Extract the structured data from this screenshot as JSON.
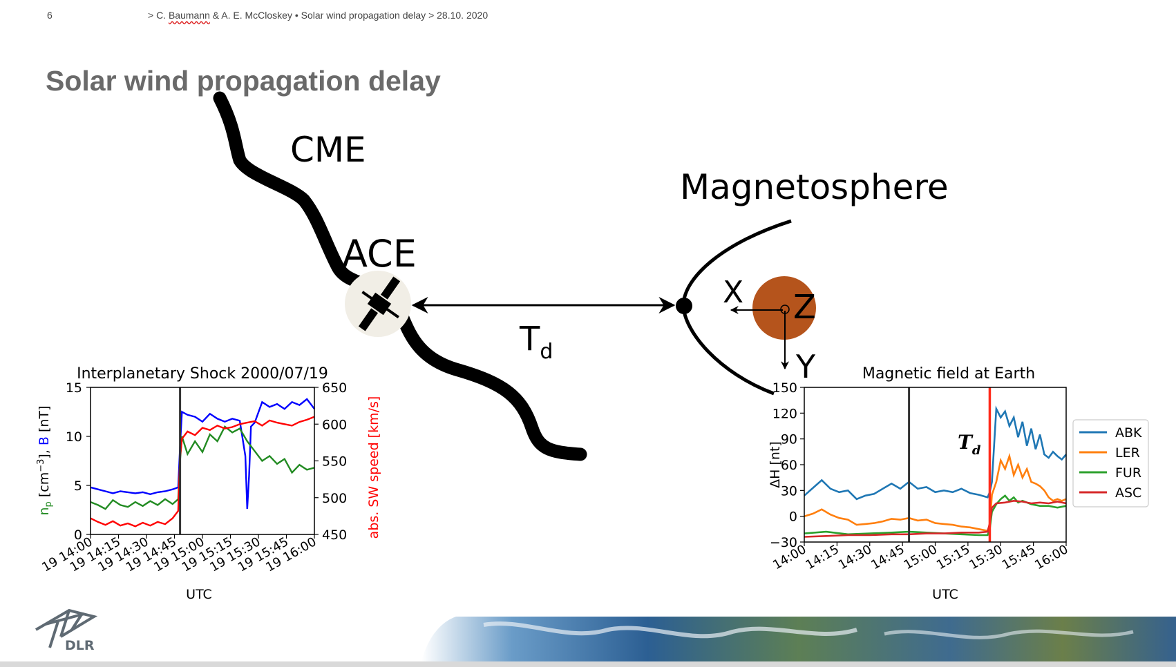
{
  "header": {
    "page_number": "6",
    "prefix": "> C. ",
    "author_underlined": "Baumann",
    "rest": " & A. E. McCloskey  •  Solar wind propagation delay > 28.10. 2020"
  },
  "slide_title": "Solar wind propagation delay",
  "diagram": {
    "cme_label": "CME",
    "ace_label": "ACE",
    "magnetosphere_label": "Magnetosphere",
    "td_main": "T",
    "td_sub": "d",
    "axis_x": "X",
    "axis_y": "Y",
    "axis_z": "Z",
    "earth_color": "#b5541c"
  },
  "logo": {
    "text": "DLR"
  },
  "chart_data": [
    {
      "type": "line",
      "title": "Interplanetary Shock 2000/07/19",
      "xlabel": "UTC",
      "ylabel_left_parts": [
        "n",
        "p",
        " [cm",
        "−3",
        "],  ",
        "B",
        " [nT]"
      ],
      "ylabel_right": "abs. SW speed [km/s]",
      "ylim_left": [
        0,
        15
      ],
      "ylim_right": [
        450,
        650
      ],
      "yticks_left": [
        "0",
        "5",
        "10",
        "15"
      ],
      "yticks_right": [
        "450",
        "500",
        "550",
        "600",
        "650"
      ],
      "xticks": [
        "19 14:00",
        "19 14:15",
        "19 14:30",
        "19 14:45",
        "19 15:00",
        "19 15:15",
        "19 15:30",
        "19 15:45",
        "19 16:00"
      ],
      "xlim_minutes": [
        0,
        120
      ],
      "vline_minutes": 48,
      "series": [
        {
          "name": "B",
          "axis": "left",
          "color": "#0000ff",
          "x": [
            0,
            4,
            8,
            12,
            16,
            20,
            24,
            28,
            32,
            36,
            40,
            44,
            47,
            48,
            49,
            52,
            56,
            60,
            64,
            68,
            72,
            76,
            80,
            83,
            84,
            85,
            86,
            88,
            92,
            96,
            100,
            104,
            108,
            112,
            116,
            120
          ],
          "y": [
            4.8,
            4.6,
            4.4,
            4.2,
            4.4,
            4.3,
            4.2,
            4.3,
            4.1,
            4.3,
            4.4,
            4.6,
            4.8,
            9,
            12.5,
            12.2,
            12,
            11.5,
            12.3,
            11.8,
            11.5,
            11.8,
            11.6,
            8,
            2.6,
            6,
            11,
            11.4,
            13.5,
            13,
            13.3,
            12.8,
            13.5,
            13.2,
            13.8,
            12.8
          ]
        },
        {
          "name": "n_p",
          "axis": "left",
          "color": "#228b22",
          "x": [
            0,
            4,
            8,
            12,
            16,
            20,
            24,
            28,
            32,
            36,
            40,
            44,
            47,
            48,
            49,
            52,
            56,
            60,
            64,
            68,
            72,
            76,
            80,
            84,
            88,
            92,
            96,
            100,
            104,
            108,
            112,
            116,
            120
          ],
          "y": [
            3.3,
            3,
            2.6,
            3.5,
            3,
            2.8,
            3.3,
            2.9,
            3.4,
            3,
            3.6,
            3.1,
            3.6,
            7.5,
            10,
            8.2,
            9.5,
            8.4,
            10.2,
            9.5,
            11,
            10.4,
            10.8,
            9.5,
            8.5,
            7.5,
            8,
            7.2,
            7.7,
            6.3,
            7.1,
            6.6,
            6.8
          ]
        },
        {
          "name": "abs. SW speed",
          "axis": "right",
          "color": "#ff0000",
          "x": [
            0,
            4,
            8,
            12,
            16,
            20,
            24,
            28,
            32,
            36,
            40,
            44,
            47,
            48,
            49,
            52,
            56,
            60,
            64,
            68,
            72,
            76,
            80,
            84,
            88,
            92,
            96,
            100,
            104,
            108,
            112,
            116,
            120
          ],
          "y": [
            472,
            467,
            463,
            468,
            462,
            465,
            461,
            466,
            462,
            467,
            464,
            472,
            482,
            555,
            580,
            590,
            585,
            595,
            592,
            598,
            594,
            596,
            600,
            602,
            604,
            598,
            605,
            602,
            600,
            598,
            603,
            606,
            610
          ]
        }
      ]
    },
    {
      "type": "line",
      "title": "Magnetic field at Earth",
      "xlabel": "UTC",
      "ylabel": "ΔH [nt]",
      "annotation_main": "T",
      "annotation_sub": "d",
      "ylim": [
        -30,
        150
      ],
      "yticks": [
        "−30",
        "0",
        "30",
        "60",
        "90",
        "120",
        "150"
      ],
      "xticks": [
        "14:00",
        "14:15",
        "14:30",
        "14:45",
        "15:00",
        "15:15",
        "15:30",
        "15:45",
        "16:00"
      ],
      "xlim_minutes": [
        0,
        120
      ],
      "vline_black_minutes": 48,
      "vline_red_minutes": 85,
      "legend": [
        "ABK",
        "LER",
        "FUR",
        "ASC"
      ],
      "legend_position": "right",
      "series": [
        {
          "name": "ABK",
          "color": "#1f77b4",
          "x": [
            0,
            4,
            8,
            12,
            16,
            20,
            24,
            28,
            32,
            36,
            40,
            44,
            48,
            52,
            56,
            60,
            64,
            68,
            72,
            76,
            80,
            84,
            85,
            86,
            88,
            90,
            92,
            94,
            96,
            98,
            100,
            102,
            104,
            106,
            108,
            110,
            112,
            114,
            116,
            118,
            120
          ],
          "y": [
            24,
            33,
            42,
            32,
            28,
            30,
            20,
            24,
            26,
            32,
            38,
            32,
            40,
            32,
            34,
            28,
            30,
            28,
            32,
            27,
            25,
            22,
            28,
            40,
            125,
            115,
            122,
            105,
            115,
            92,
            110,
            82,
            102,
            78,
            95,
            72,
            68,
            75,
            70,
            66,
            72
          ]
        },
        {
          "name": "LER",
          "color": "#ff7f0e",
          "x": [
            0,
            4,
            8,
            12,
            16,
            20,
            24,
            28,
            32,
            36,
            40,
            44,
            48,
            52,
            56,
            60,
            64,
            68,
            72,
            76,
            80,
            84,
            85,
            86,
            88,
            90,
            92,
            94,
            96,
            98,
            100,
            102,
            104,
            106,
            108,
            110,
            112,
            114,
            116,
            118,
            120
          ],
          "y": [
            0,
            3,
            8,
            2,
            -2,
            -4,
            -10,
            -9,
            -8,
            -6,
            -3,
            -4,
            -2,
            -5,
            -4,
            -8,
            -9,
            -10,
            -12,
            -13,
            -15,
            -17,
            -10,
            25,
            40,
            65,
            55,
            70,
            48,
            60,
            45,
            55,
            40,
            38,
            35,
            30,
            22,
            18,
            20,
            18,
            20
          ]
        },
        {
          "name": "FUR",
          "color": "#2ca02c",
          "x": [
            0,
            10,
            20,
            30,
            40,
            48,
            56,
            64,
            72,
            80,
            84,
            85,
            86,
            88,
            90,
            92,
            94,
            96,
            98,
            100,
            104,
            108,
            112,
            116,
            120
          ],
          "y": [
            -20,
            -18,
            -21,
            -20,
            -19,
            -18,
            -19,
            -20,
            -21,
            -22,
            -22,
            -15,
            5,
            14,
            20,
            24,
            18,
            22,
            16,
            18,
            14,
            12,
            12,
            10,
            12
          ]
        },
        {
          "name": "ASC",
          "color": "#d62728",
          "x": [
            0,
            10,
            20,
            30,
            40,
            48,
            56,
            64,
            72,
            80,
            84,
            85,
            86,
            88,
            92,
            96,
            100,
            104,
            108,
            112,
            116,
            120
          ],
          "y": [
            -24,
            -23,
            -22,
            -22,
            -21,
            -21,
            -20,
            -20,
            -19,
            -19,
            -18,
            -8,
            10,
            15,
            16,
            18,
            17,
            15,
            16,
            15,
            17,
            15
          ]
        }
      ]
    }
  ]
}
